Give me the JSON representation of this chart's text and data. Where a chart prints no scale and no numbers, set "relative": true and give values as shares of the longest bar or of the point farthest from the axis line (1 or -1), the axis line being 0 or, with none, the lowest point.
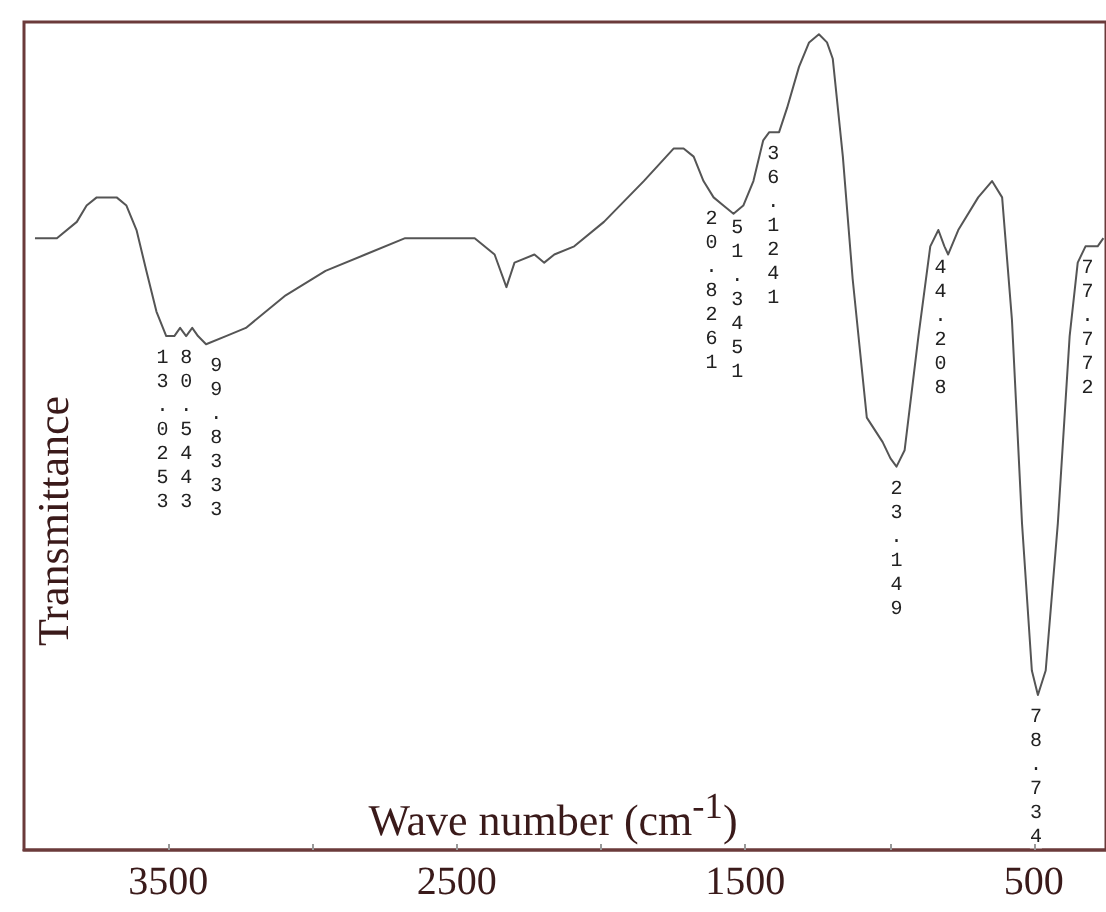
{
  "chart_data": {
    "type": "line",
    "relative": true,
    "xlabel": "Wave number (cm$^{-1}$)",
    "ylabel": "Transmittance",
    "xlim": [
      4000,
      250
    ],
    "xticks": [
      3500,
      {
        "value": 3000,
        "label": null
      },
      2500,
      {
        "value": 2000,
        "label": null
      },
      1500,
      {
        "value": 1000,
        "label": null
      },
      500
    ],
    "x": [
      3962,
      3886,
      3817,
      3783,
      3748,
      3679,
      3645,
      3610,
      3576,
      3541,
      3507,
      3479,
      3459,
      3438,
      3417,
      3397,
      3369,
      3300,
      3231,
      3093,
      2955,
      2817,
      2679,
      2541,
      2438,
      2369,
      2328,
      2300,
      2231,
      2197,
      2162,
      2093,
      1990,
      1852,
      1748,
      1714,
      1679,
      1645,
      1610,
      1576,
      1541,
      1507,
      1472,
      1438,
      1417,
      1383,
      1355,
      1314,
      1279,
      1245,
      1217,
      1197,
      1162,
      1128,
      1079,
      1024,
      997,
      976,
      948,
      900,
      859,
      831,
      810,
      797,
      762,
      693,
      645,
      610,
      576,
      541,
      507,
      486,
      459,
      417,
      376,
      348,
      321,
      300,
      279,
      259
    ],
    "series": [
      {
        "color": "#555555",
        "values": [
          0.75,
          0.75,
          0.77,
          0.79,
          0.8,
          0.8,
          0.79,
          0.76,
          0.71,
          0.66,
          0.63,
          0.63,
          0.64,
          0.63,
          0.64,
          0.63,
          0.62,
          0.63,
          0.64,
          0.68,
          0.71,
          0.73,
          0.75,
          0.75,
          0.75,
          0.73,
          0.69,
          0.72,
          0.73,
          0.72,
          0.73,
          0.74,
          0.77,
          0.82,
          0.86,
          0.86,
          0.85,
          0.82,
          0.8,
          0.79,
          0.78,
          0.79,
          0.82,
          0.87,
          0.88,
          0.88,
          0.91,
          0.96,
          0.99,
          1,
          0.99,
          0.97,
          0.85,
          0.7,
          0.53,
          0.5,
          0.48,
          0.47,
          0.49,
          0.63,
          0.74,
          0.76,
          0.74,
          0.73,
          0.76,
          0.8,
          0.82,
          0.8,
          0.65,
          0.4,
          0.22,
          0.19,
          0.22,
          0.4,
          0.63,
          0.72,
          0.74,
          0.74,
          0.74,
          0.75
        ]
      }
    ],
    "annotations": [
      {
        "text": "13.0253",
        "x": 3520,
        "y": 0.63
      },
      {
        "text": "80.5443",
        "x": 3438,
        "y": 0.63
      },
      {
        "text": "99.8333",
        "x": 3334,
        "y": 0.62
      },
      {
        "text": "20.8261",
        "x": 1617,
        "y": 0.8
      },
      {
        "text": "51.3451",
        "x": 1528,
        "y": 0.79
      },
      {
        "text": "36.1241",
        "x": 1403,
        "y": 0.88
      },
      {
        "text": "23.149",
        "x": 976,
        "y": 0.47
      },
      {
        "text": "44.208",
        "x": 824,
        "y": 0.74
      },
      {
        "text": "78.734",
        "x": 493,
        "y": 0.19
      },
      {
        "text": "77.772",
        "x": 314,
        "y": 0.74
      }
    ]
  }
}
